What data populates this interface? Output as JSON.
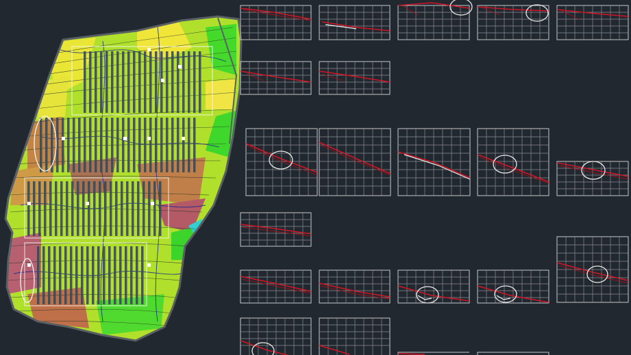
{
  "app": {
    "view": "model-space",
    "background_color": "#212830"
  },
  "plan": {
    "terrain_colors": [
      "#f3e42c",
      "#a9df2a",
      "#49d92a",
      "#c88a45",
      "#b35a66",
      "#2fd2d0"
    ],
    "contour_color": "#1c2a8a",
    "boundary_color": "#5a5f63",
    "row_color": "#3b4a55"
  },
  "panels": {
    "frame_color": "#c9c9c9",
    "profile_color": "#d01525",
    "markers": 9
  }
}
